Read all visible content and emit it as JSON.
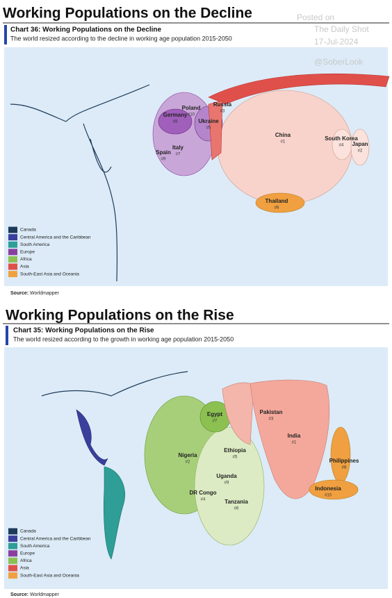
{
  "watermark": {
    "posted": "Posted on",
    "site": "The Daily Shot",
    "date": "17-Jul-2024",
    "handle": "@SoberLook"
  },
  "panels": [
    {
      "heading": "Working Populations on the Decline",
      "title": "Chart 36: Working Populations on the Decline",
      "subtitle": "The world resized according to the decline in working age population 2015-2050",
      "labels": [
        {
          "name": "China",
          "rank": "#1"
        },
        {
          "name": "Japan",
          "rank": "#2"
        },
        {
          "name": "Russia",
          "rank": "#3"
        },
        {
          "name": "South Korea",
          "rank": "#4"
        },
        {
          "name": "Ukraine",
          "rank": "#5"
        },
        {
          "name": "Thailand",
          "rank": "#6"
        },
        {
          "name": "Italy",
          "rank": "#7"
        },
        {
          "name": "Germany",
          "rank": "#8"
        },
        {
          "name": "Spain",
          "rank": "#9"
        },
        {
          "name": "Poland",
          "rank": "#10"
        }
      ],
      "legend": [
        {
          "label": "Canada",
          "color": "#1e3a5a"
        },
        {
          "label": "Central America and the Caribbean",
          "color": "#3b3f9c"
        },
        {
          "label": "South America",
          "color": "#2e9e96"
        },
        {
          "label": "Europe",
          "color": "#8a3fa0"
        },
        {
          "label": "Africa",
          "color": "#8cc152"
        },
        {
          "label": "Asia",
          "color": "#e0504a"
        },
        {
          "label": "South-East Asia and Oceania",
          "color": "#f0a040"
        }
      ],
      "source_label": "Source:",
      "source": "Worldmapper"
    },
    {
      "heading": "Working Populations on the Rise",
      "title": "Chart 35: Working Populations on the Rise",
      "subtitle": "The world resized according to the growth in working age population 2015-2050",
      "labels": [
        {
          "name": "India",
          "rank": "#1"
        },
        {
          "name": "Nigeria",
          "rank": "#2"
        },
        {
          "name": "Pakistan",
          "rank": "#3"
        },
        {
          "name": "DR Congo",
          "rank": "#4"
        },
        {
          "name": "Ethiopia",
          "rank": "#5"
        },
        {
          "name": "Tanzania",
          "rank": "#6"
        },
        {
          "name": "Egypt",
          "rank": "#7"
        },
        {
          "name": "Philippines",
          "rank": "#8"
        },
        {
          "name": "Uganda",
          "rank": "#9"
        },
        {
          "name": "Indonesia",
          "rank": "#10"
        }
      ],
      "legend": [
        {
          "label": "Canada",
          "color": "#1e3a5a"
        },
        {
          "label": "Central America and the Caribbean",
          "color": "#3b3f9c"
        },
        {
          "label": "South America",
          "color": "#2e9e96"
        },
        {
          "label": "Europe",
          "color": "#8a3fa0"
        },
        {
          "label": "Africa",
          "color": "#8cc152"
        },
        {
          "label": "Asia",
          "color": "#e0504a"
        },
        {
          "label": "South-East Asia and Oceania",
          "color": "#f0a040"
        }
      ],
      "source_label": "Source:",
      "source": "Worldmapper"
    }
  ]
}
